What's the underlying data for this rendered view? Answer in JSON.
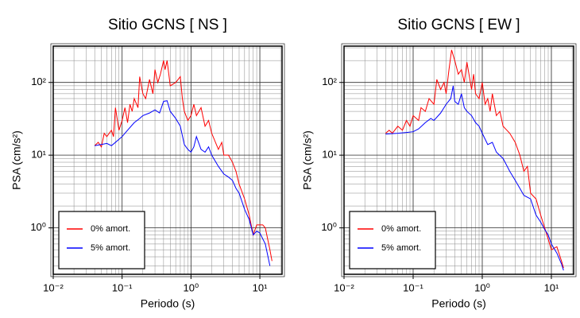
{
  "chart_data": [
    {
      "type": "line",
      "title": "Sitio GCNS [ NS ]",
      "x_label": "Periodo (s)",
      "y_label": "PSA (cm/s²)",
      "log_x": true,
      "log_y": true,
      "grid": true,
      "legend": "lower left",
      "xlim": [
        0.01,
        21
      ],
      "ylim": [
        0.23,
        316
      ],
      "xticks": [
        {
          "value": 0.01,
          "label": "10⁻²"
        },
        {
          "value": 0.1,
          "label": "10⁻¹"
        },
        {
          "value": 1,
          "label": "10⁰"
        },
        {
          "value": 10,
          "label": "10¹"
        }
      ],
      "yticks": [
        {
          "value": 1,
          "label": "10⁰"
        },
        {
          "value": 10,
          "label": "10¹"
        },
        {
          "value": 100,
          "label": "10²"
        }
      ],
      "series": [
        {
          "name": "0% amort.",
          "color": "#ff0000",
          "x": [
            0.04,
            0.045,
            0.05,
            0.055,
            0.06,
            0.07,
            0.075,
            0.08,
            0.09,
            0.1,
            0.11,
            0.12,
            0.13,
            0.14,
            0.15,
            0.17,
            0.18,
            0.2,
            0.22,
            0.25,
            0.28,
            0.3,
            0.33,
            0.36,
            0.4,
            0.42,
            0.45,
            0.5,
            0.6,
            0.7,
            0.75,
            0.8,
            0.9,
            1.0,
            1.1,
            1.2,
            1.4,
            1.6,
            1.8,
            2.0,
            2.5,
            2.8,
            3.0,
            3.5,
            4.0,
            4.5,
            5.0,
            6,
            7,
            8,
            9,
            10,
            11,
            12,
            14,
            15
          ],
          "values": [
            13.5,
            15,
            13,
            20,
            18,
            22,
            18,
            45,
            22,
            30,
            45,
            28,
            50,
            40,
            60,
            45,
            120,
            70,
            60,
            110,
            70,
            150,
            100,
            130,
            200,
            150,
            200,
            90,
            100,
            120,
            60,
            40,
            30,
            35,
            50,
            35,
            45,
            25,
            30,
            20,
            12,
            15,
            10,
            10,
            8,
            6,
            4,
            2.5,
            1.5,
            0.8,
            1.1,
            1.1,
            1.1,
            1.0,
            0.5,
            0.35
          ]
        },
        {
          "name": "5% amort.",
          "color": "#0000ff",
          "x": [
            0.04,
            0.05,
            0.06,
            0.07,
            0.08,
            0.1,
            0.12,
            0.15,
            0.18,
            0.2,
            0.25,
            0.3,
            0.35,
            0.4,
            0.45,
            0.5,
            0.6,
            0.7,
            0.8,
            0.9,
            1.0,
            1.1,
            1.2,
            1.4,
            1.6,
            1.8,
            2.0,
            2.5,
            3.0,
            3.5,
            4.0,
            4.5,
            5.0,
            6.0,
            7.0,
            8.0,
            9.0,
            10,
            12,
            14
          ],
          "values": [
            13.5,
            14,
            14.5,
            13.5,
            15,
            18,
            22,
            28,
            32,
            35,
            38,
            42,
            38,
            55,
            56,
            40,
            32,
            25,
            14,
            12,
            11,
            13,
            18,
            12,
            11,
            13,
            10,
            7,
            5.5,
            5,
            4.5,
            3.5,
            3,
            1.8,
            1.3,
            0.8,
            0.9,
            0.85,
            0.6,
            0.3
          ]
        }
      ]
    },
    {
      "type": "line",
      "title": "Sitio GCNS [ EW ]",
      "x_label": "Periodo (s)",
      "y_label": "PSA (cm/s²)",
      "log_x": true,
      "log_y": true,
      "grid": true,
      "legend": "lower left",
      "xlim": [
        0.01,
        21
      ],
      "ylim": [
        0.23,
        316
      ],
      "xticks": [
        {
          "value": 0.01,
          "label": "10⁻²"
        },
        {
          "value": 0.1,
          "label": "10⁻¹"
        },
        {
          "value": 1,
          "label": "10⁰"
        },
        {
          "value": 10,
          "label": "10¹"
        }
      ],
      "yticks": [
        {
          "value": 1,
          "label": "10⁰"
        },
        {
          "value": 10,
          "label": "10¹"
        },
        {
          "value": 100,
          "label": "10²"
        }
      ],
      "series": [
        {
          "name": "0% amort.",
          "color": "#ff0000",
          "x": [
            0.04,
            0.045,
            0.05,
            0.06,
            0.07,
            0.08,
            0.09,
            0.1,
            0.12,
            0.13,
            0.15,
            0.17,
            0.2,
            0.22,
            0.25,
            0.28,
            0.3,
            0.33,
            0.36,
            0.4,
            0.45,
            0.5,
            0.55,
            0.6,
            0.7,
            0.75,
            0.8,
            0.9,
            1.0,
            1.1,
            1.2,
            1.3,
            1.4,
            1.6,
            1.8,
            2.0,
            2.5,
            3.0,
            3.5,
            4.0,
            4.5,
            5,
            6,
            7,
            8,
            9,
            10,
            12,
            14,
            15
          ],
          "values": [
            20,
            22,
            20,
            25,
            22,
            30,
            25,
            35,
            30,
            45,
            40,
            60,
            50,
            110,
            80,
            100,
            70,
            150,
            280,
            200,
            130,
            150,
            100,
            190,
            80,
            130,
            70,
            60,
            100,
            50,
            60,
            40,
            70,
            35,
            40,
            25,
            20,
            15,
            10,
            6,
            7,
            3,
            2.5,
            1.5,
            1,
            0.7,
            0.5,
            0.55,
            0.35,
            0.28
          ]
        },
        {
          "name": "5% amort.",
          "color": "#0000ff",
          "x": [
            0.04,
            0.06,
            0.08,
            0.1,
            0.12,
            0.15,
            0.18,
            0.2,
            0.25,
            0.3,
            0.35,
            0.38,
            0.4,
            0.45,
            0.5,
            0.55,
            0.6,
            0.7,
            0.8,
            0.9,
            1.0,
            1.2,
            1.4,
            1.6,
            2.0,
            2.5,
            3.0,
            3.5,
            4.0,
            5,
            6,
            7,
            8,
            9,
            10,
            12,
            14,
            15
          ],
          "values": [
            19.5,
            20,
            20.5,
            21,
            23,
            28,
            32,
            30,
            38,
            50,
            60,
            90,
            55,
            50,
            70,
            45,
            40,
            35,
            28,
            25,
            20,
            14,
            15,
            11,
            9,
            6,
            4.5,
            3.5,
            2.8,
            2.5,
            1.5,
            1.2,
            0.95,
            0.8,
            0.6,
            0.45,
            0.32,
            0.26
          ]
        }
      ]
    }
  ]
}
